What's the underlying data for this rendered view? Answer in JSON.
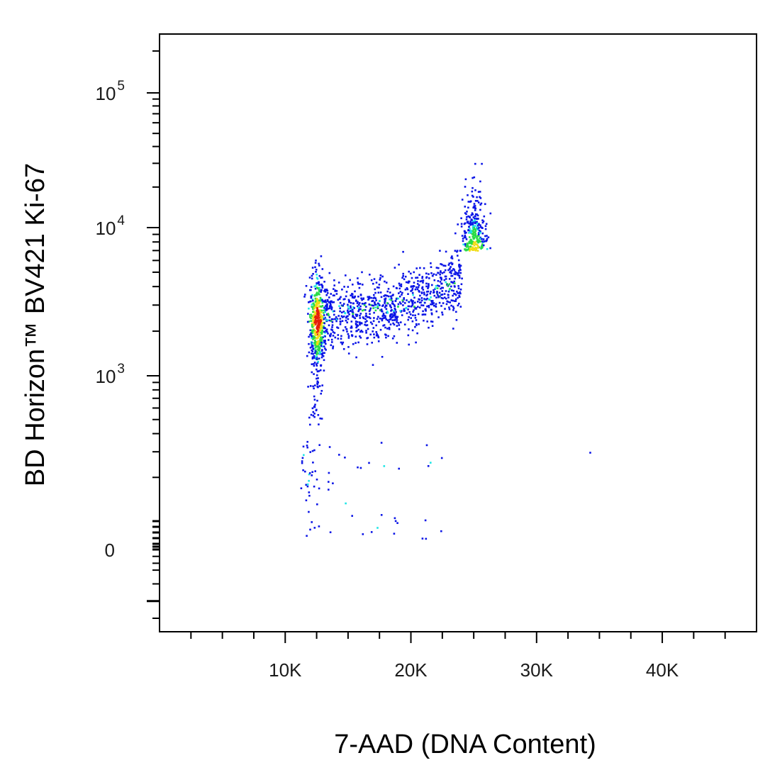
{
  "chart_data": {
    "type": "scatter",
    "title": "",
    "xlabel": "7-AAD (DNA Content)",
    "ylabel": "BD Horizon™ BV421 Ki-67",
    "x_scale": "linear",
    "y_scale": "biexponential (log above 10^3, linear near 0)",
    "xlim": [
      0,
      47500
    ],
    "ylim": [
      -400,
      230000
    ],
    "x_ticks": [
      {
        "value": 10000,
        "label": "10K"
      },
      {
        "value": 20000,
        "label": "20K"
      },
      {
        "value": 30000,
        "label": "30K"
      },
      {
        "value": 40000,
        "label": "40K"
      }
    ],
    "y_ticks": [
      {
        "value": 0,
        "base": "0",
        "exp": ""
      },
      {
        "value": 1000,
        "base": "10",
        "exp": "3"
      },
      {
        "value": 10000,
        "base": "10",
        "exp": "4"
      },
      {
        "value": 100000,
        "base": "10",
        "exp": "5"
      }
    ],
    "grid": false,
    "legend": "none",
    "color_scale": "event density (blue low → cyan → green → yellow → red high)",
    "populations": [
      {
        "name": "",
        "x_center": 12500,
        "y_range": [
          800,
          6500
        ],
        "density": "highest",
        "points": 520
      },
      {
        "name": "",
        "x_range": [
          13000,
          24000
        ],
        "y_range": [
          1500,
          6000
        ],
        "density": "medium",
        "points": 900
      },
      {
        "name": "",
        "x_center": 25000,
        "y_range": [
          4000,
          30000
        ],
        "density": "medium",
        "points": 300
      },
      {
        "name": "",
        "x_range": [
          11000,
          23000
        ],
        "y_range": [
          80,
          500
        ],
        "density": "low",
        "points": 70
      }
    ],
    "outliers": [
      [
        34200,
        300
      ]
    ],
    "colors": {
      "density_low": "#0a14e6",
      "density_mid": "#1ee6e6",
      "density_midhigh": "#2adc46",
      "density_high": "#f0dc14",
      "density_peak": "#e61e0a",
      "axis": "#000000"
    }
  }
}
